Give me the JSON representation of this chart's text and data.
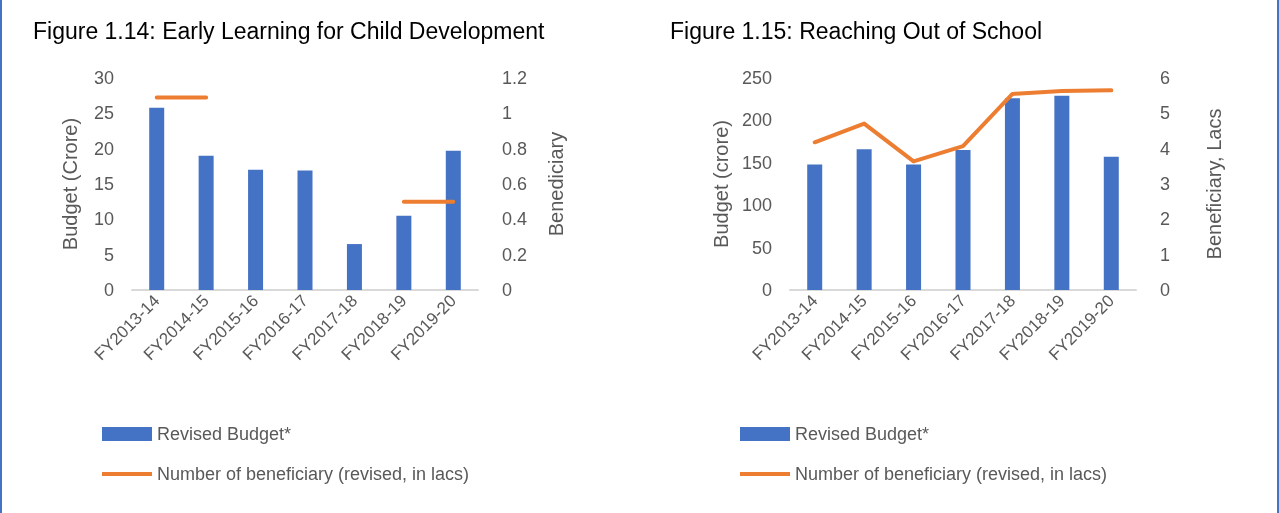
{
  "chart_data": [
    {
      "type": "bar",
      "title": "Figure 1.14: Early Learning for Child Development",
      "ylabel": "Budget (Crore)",
      "y2label": "Benediciary",
      "categories": [
        "FY2013-14",
        "FY2014-15",
        "FY2015-16",
        "FY2016-17",
        "FY2017-18",
        "FY2018-19",
        "FY2019-20"
      ],
      "series": [
        {
          "name": "Revised Budget*",
          "color": "#4472c4",
          "values": [
            25.8,
            19.0,
            17.0,
            16.9,
            6.5,
            10.5,
            19.7
          ]
        },
        {
          "name": "Number of beneficiary (revised, in lacs)",
          "type": "line",
          "axis": "y2",
          "color": "#ed7d31",
          "values": [
            1.09,
            1.09,
            null,
            null,
            null,
            0.5,
            0.5
          ]
        }
      ],
      "ylim": [
        0,
        30
      ],
      "yticks": [
        0,
        5,
        10,
        15,
        20,
        25,
        30
      ],
      "y2lim": [
        0,
        1.2
      ],
      "y2ticks": [
        0,
        0.2,
        0.4,
        0.6,
        0.8,
        1,
        1.2
      ],
      "grid": false,
      "legend": "bottom",
      "marker": "none"
    },
    {
      "type": "bar",
      "title": "Figure 1.15: Reaching Out of School",
      "ylabel": "Budget (crore)",
      "y2label": "Beneficiary, Lacs",
      "categories": [
        "FY2013-14",
        "FY2014-15",
        "FY2015-16",
        "FY2016-17",
        "FY2017-18",
        "FY2018-19",
        "FY2019-20"
      ],
      "series": [
        {
          "name": "Revised Budget*",
          "color": "#4472c4",
          "values": [
            148,
            166,
            148,
            165,
            226,
            229,
            157
          ]
        },
        {
          "name": "Number of beneficiary (revised, in lacs)",
          "type": "line",
          "axis": "y2",
          "color": "#ed7d31",
          "values": [
            4.18,
            4.71,
            3.64,
            4.07,
            5.55,
            5.63,
            5.65
          ]
        }
      ],
      "ylim": [
        0,
        250
      ],
      "yticks": [
        0,
        50,
        100,
        150,
        200,
        250
      ],
      "y2lim": [
        0,
        6
      ],
      "y2ticks": [
        0,
        1,
        2,
        3,
        4,
        5,
        6
      ],
      "grid": false,
      "legend": "bottom",
      "marker": "none"
    }
  ]
}
